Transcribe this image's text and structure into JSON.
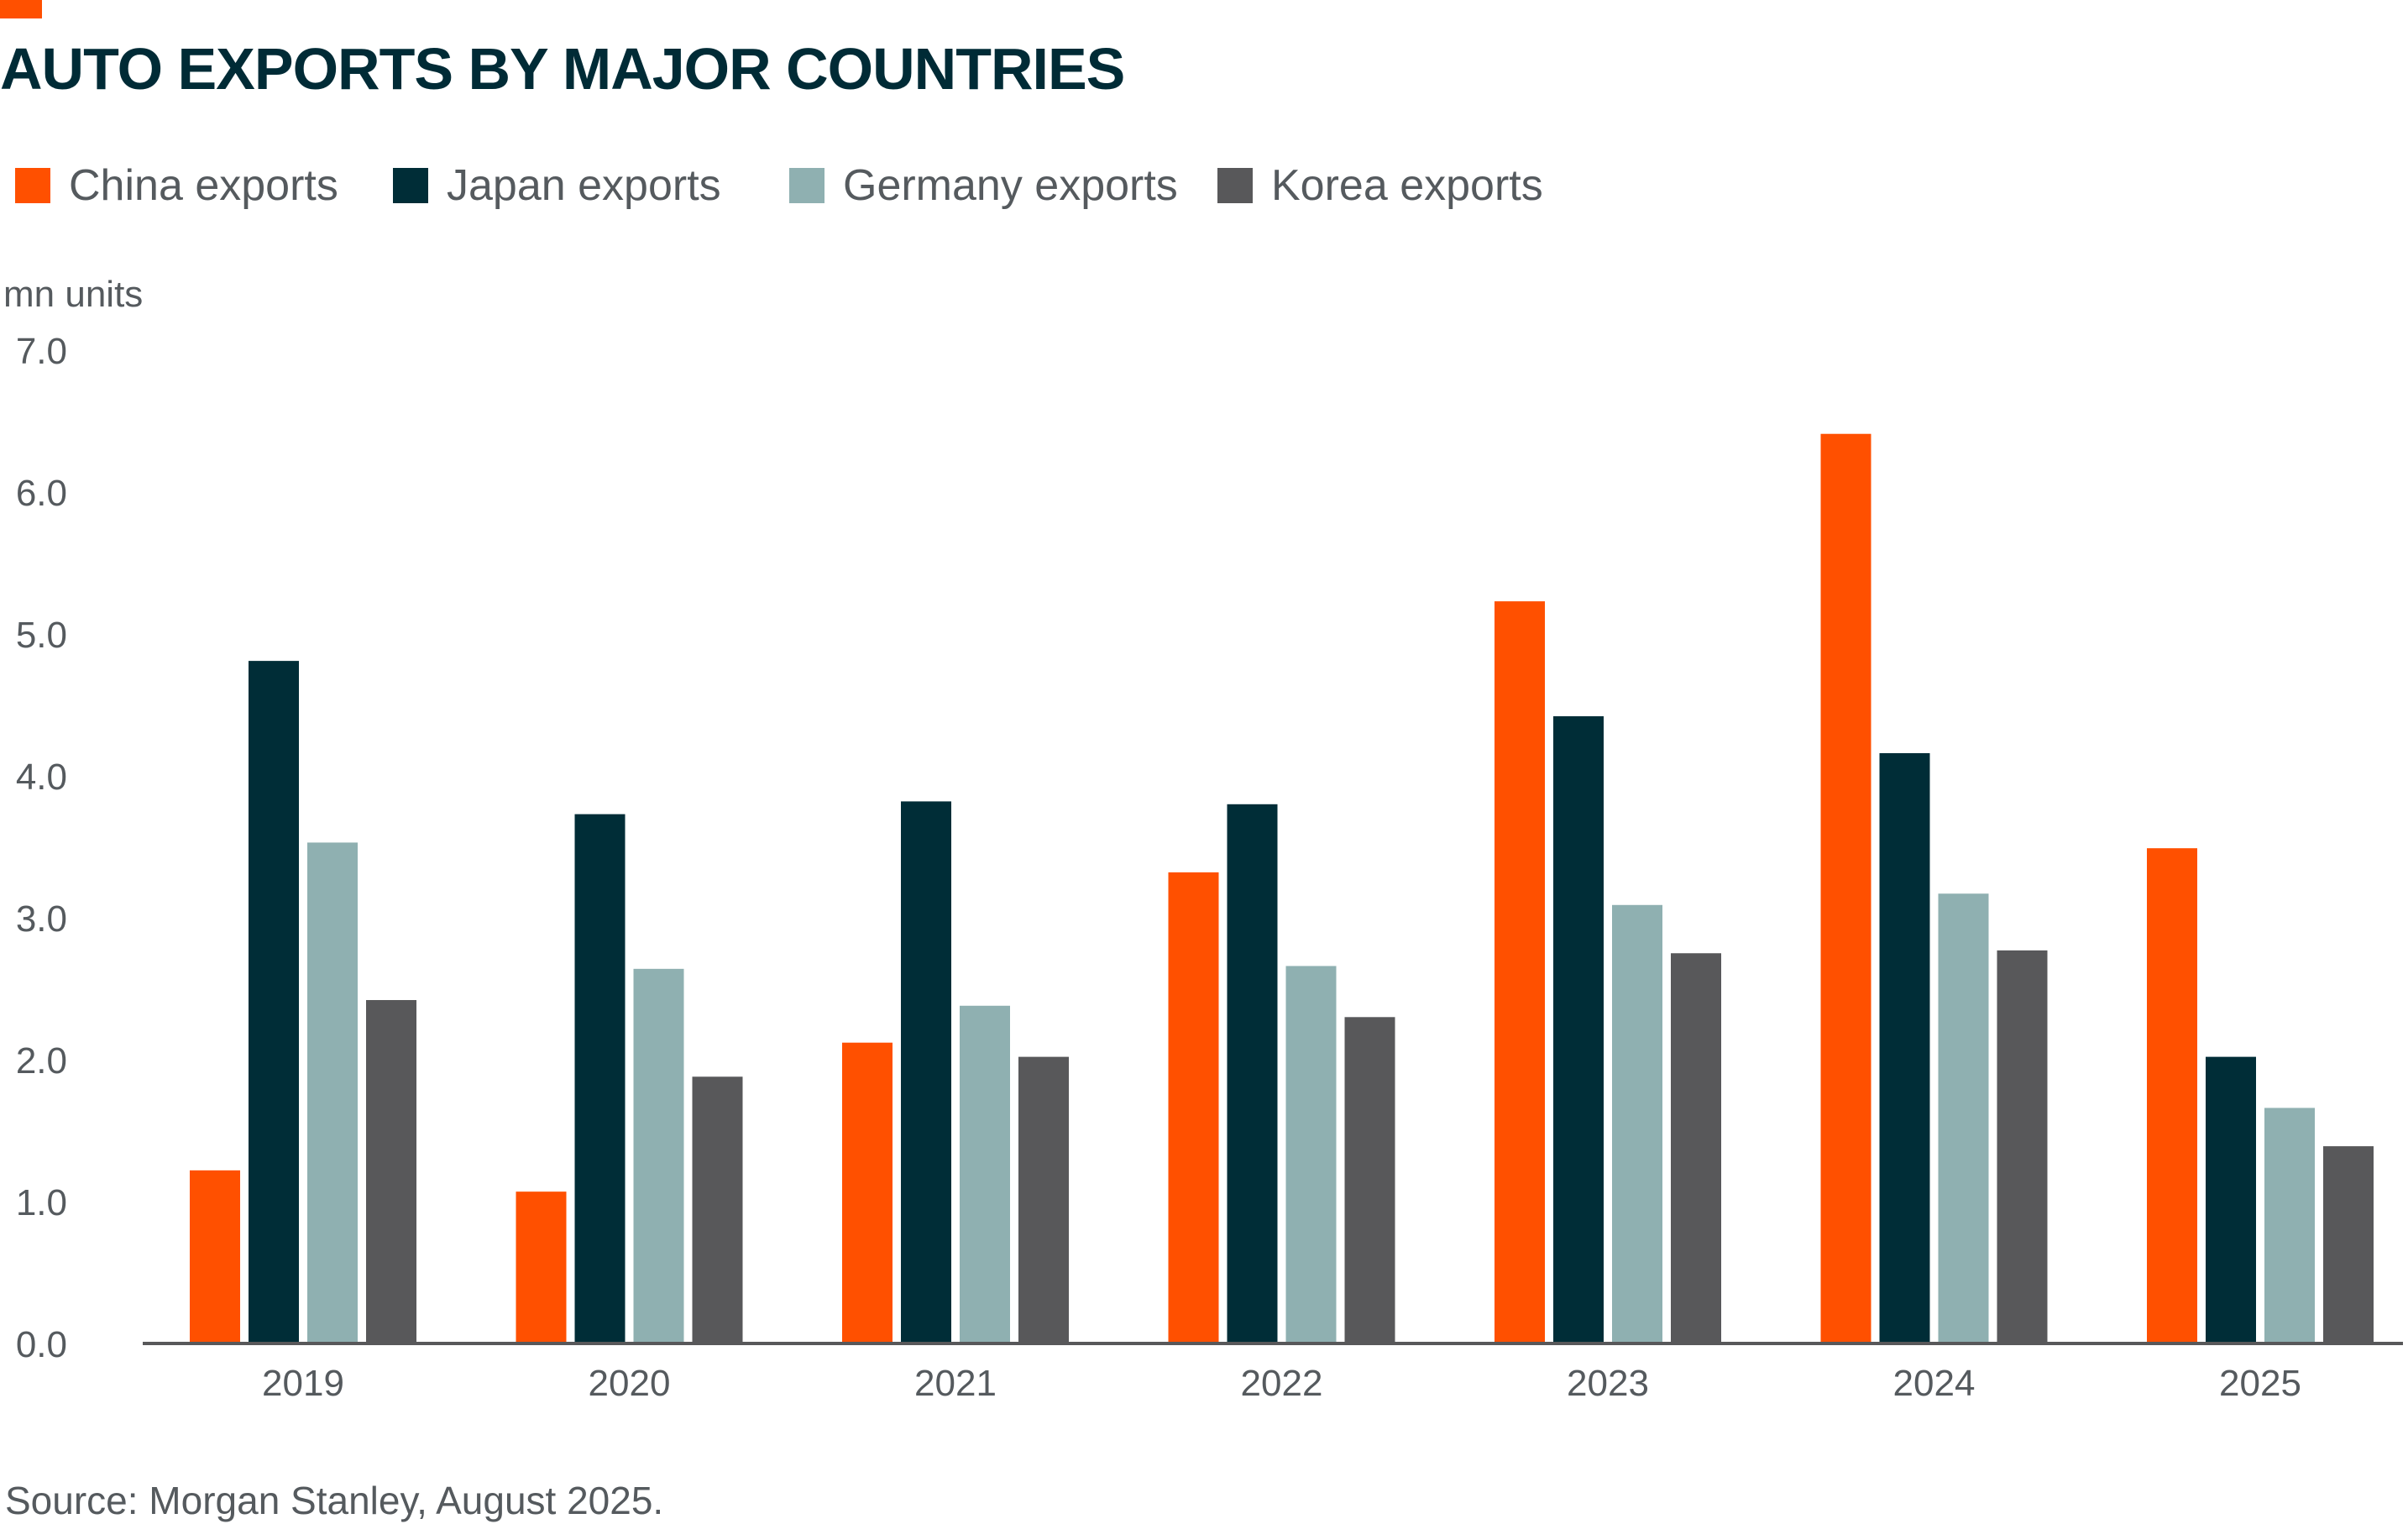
{
  "header": {
    "title": "AUTO EXPORTS BY MAJOR COUNTRIES",
    "accent_color": "#ff5000"
  },
  "legend": {
    "items": [
      {
        "label": "China exports",
        "color": "#ff5000"
      },
      {
        "label": "Japan exports",
        "color": "#002d37"
      },
      {
        "label": "Germany exports",
        "color": "#8fb0b1"
      },
      {
        "label": "Korea exports",
        "color": "#58585a"
      }
    ]
  },
  "footer": {
    "source": "Source: Morgan Stanley, August 2025."
  },
  "chart_data": {
    "type": "bar",
    "title": "AUTO EXPORTS BY MAJOR COUNTRIES",
    "xlabel": "",
    "ylabel": "mn units",
    "ylim": [
      0,
      7
    ],
    "y_ticks": [
      "0.0",
      "1.0",
      "2.0",
      "3.0",
      "4.0",
      "5.0",
      "6.0",
      "7.0"
    ],
    "grid": false,
    "legend_position": "top-left",
    "categories": [
      "2019",
      "2020",
      "2021",
      "2022",
      "2023",
      "2024",
      "2025"
    ],
    "series": [
      {
        "name": "China exports",
        "color": "#ff5000",
        "values": [
          1.22,
          1.07,
          2.12,
          3.32,
          5.23,
          6.41,
          3.49
        ]
      },
      {
        "name": "Japan exports",
        "color": "#002d37",
        "values": [
          4.81,
          3.73,
          3.82,
          3.8,
          4.42,
          4.16,
          2.02
        ]
      },
      {
        "name": "Germany exports",
        "color": "#8fb0b1",
        "values": [
          3.53,
          2.64,
          2.38,
          2.66,
          3.09,
          3.17,
          1.66
        ]
      },
      {
        "name": "Korea exports",
        "color": "#58585a",
        "values": [
          2.42,
          1.88,
          2.02,
          2.3,
          2.75,
          2.77,
          1.39
        ]
      }
    ]
  }
}
